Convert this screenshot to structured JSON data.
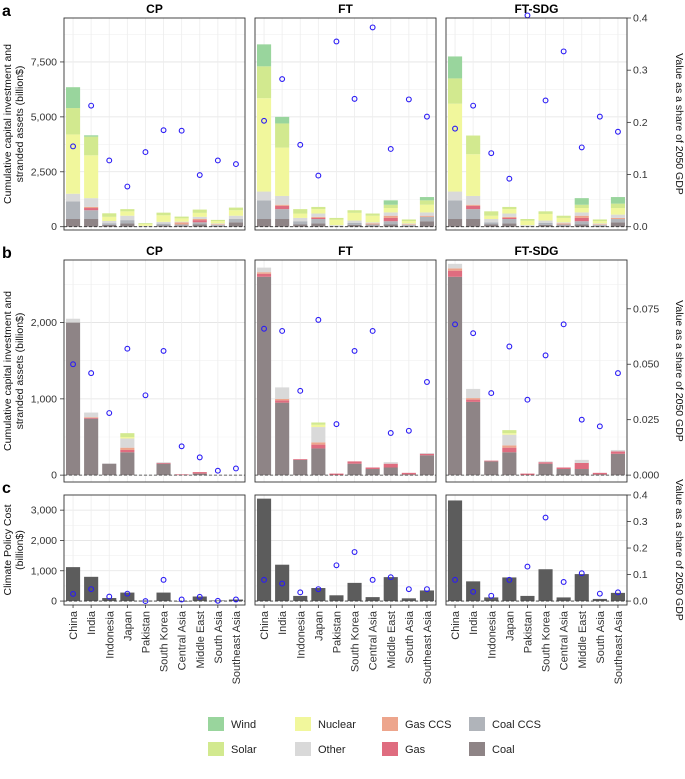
{
  "colors": {
    "Wind": "#99d59d",
    "Solar": "#d2e98f",
    "Nuclear": "#f1f79c",
    "Other": "#d9d9d9",
    "Gas CCS": "#eda58c",
    "Gas": "#df6c7f",
    "Coal CCS": "#b0b4ba",
    "Coal": "#8e8486",
    "PolicyCost": "#5c5c5c",
    "Point": "#2b1cf5"
  },
  "chart_data": [
    {
      "panel_label": "a",
      "type": "bar",
      "stacked": true,
      "facets": [
        "CP",
        "FT",
        "FT-SDG"
      ],
      "ylabel_lines": [
        "Cumulative capital investment and",
        "stranded assets (billion$)"
      ],
      "y2label": "Value as a share of 2050 GDP",
      "ylim": [
        -150,
        9500
      ],
      "y2lim": [
        -0.0063,
        0.4
      ],
      "yticks": [
        0,
        2500,
        5000,
        7500
      ],
      "ytick_labels": [
        "0",
        "2,500",
        "5,000",
        "7,500"
      ],
      "y2ticks": [
        0,
        0.1,
        0.2,
        0.3,
        0.4
      ],
      "y2tick_labels": [
        "0.0",
        "0.1",
        "0.2",
        "0.3",
        "0.4"
      ],
      "categories": [
        "China",
        "India",
        "Indonesia",
        "Japan",
        "Pakistan",
        "South Korea",
        "Central Asia",
        "Middle East",
        "South Asia",
        "Southeast Asia"
      ],
      "stack_order": [
        "Coal",
        "Coal CCS",
        "Gas",
        "Gas CCS",
        "Other",
        "Nuclear",
        "Solar",
        "Wind"
      ],
      "data": {
        "CP": {
          "Coal": [
            350,
            350,
            80,
            150,
            10,
            60,
            50,
            100,
            40,
            200
          ],
          "Coal CCS": [
            800,
            400,
            80,
            150,
            10,
            80,
            50,
            100,
            40,
            150
          ],
          "Gas": [
            0,
            100,
            0,
            0,
            0,
            0,
            0,
            100,
            0,
            0
          ],
          "Gas CCS": [
            0,
            50,
            0,
            0,
            0,
            0,
            100,
            50,
            30,
            0
          ],
          "Other": [
            350,
            400,
            100,
            200,
            20,
            80,
            30,
            100,
            40,
            150
          ],
          "Nuclear": [
            2700,
            1950,
            190,
            200,
            80,
            300,
            150,
            180,
            100,
            250
          ],
          "Solar": [
            1200,
            850,
            160,
            100,
            40,
            120,
            80,
            150,
            60,
            120
          ],
          "Wind": [
            950,
            60,
            0,
            0,
            0,
            0,
            0,
            0,
            0,
            0
          ],
          "share": [
            0.154,
            0.232,
            0.127,
            0.077,
            0.143,
            0.185,
            0.184,
            0.099,
            0.127,
            0.12
          ]
        },
        "FT": {
          "Coal": [
            350,
            350,
            100,
            150,
            20,
            80,
            50,
            100,
            40,
            250
          ],
          "Coal CCS": [
            850,
            450,
            150,
            200,
            20,
            100,
            50,
            150,
            40,
            200
          ],
          "Gas": [
            0,
            150,
            0,
            50,
            0,
            0,
            0,
            150,
            0,
            0
          ],
          "Gas CCS": [
            0,
            50,
            0,
            50,
            0,
            0,
            50,
            100,
            30,
            50
          ],
          "Other": [
            400,
            400,
            150,
            150,
            30,
            100,
            50,
            150,
            40,
            150
          ],
          "Nuclear": [
            4250,
            2200,
            200,
            200,
            250,
            350,
            300,
            200,
            100,
            350
          ],
          "Solar": [
            1450,
            1100,
            200,
            100,
            80,
            120,
            100,
            150,
            80,
            200
          ],
          "Wind": [
            1000,
            300,
            0,
            0,
            0,
            0,
            0,
            200,
            0,
            150
          ],
          "share": [
            0.203,
            0.283,
            0.157,
            0.098,
            0.355,
            0.245,
            0.382,
            0.149,
            0.244,
            0.211
          ]
        },
        "FT-SDG": {
          "Coal": [
            350,
            350,
            100,
            150,
            20,
            80,
            50,
            100,
            40,
            200
          ],
          "Coal CCS": [
            850,
            450,
            100,
            200,
            20,
            100,
            50,
            150,
            40,
            150
          ],
          "Gas": [
            0,
            150,
            0,
            50,
            0,
            0,
            0,
            150,
            0,
            0
          ],
          "Gas CCS": [
            0,
            50,
            0,
            50,
            0,
            0,
            50,
            100,
            30,
            50
          ],
          "Other": [
            400,
            400,
            150,
            150,
            30,
            100,
            50,
            150,
            40,
            150
          ],
          "Nuclear": [
            4000,
            1900,
            150,
            200,
            200,
            300,
            200,
            200,
            100,
            300
          ],
          "Solar": [
            1150,
            850,
            200,
            100,
            80,
            120,
            100,
            150,
            80,
            200
          ],
          "Wind": [
            1000,
            0,
            0,
            0,
            0,
            0,
            0,
            300,
            0,
            300
          ],
          "share": [
            0.188,
            0.232,
            0.141,
            0.092,
            0.405,
            0.242,
            0.336,
            0.152,
            0.211,
            0.182
          ]
        }
      }
    },
    {
      "panel_label": "b",
      "type": "bar",
      "stacked": true,
      "facets": [
        "CP",
        "FT",
        "FT-SDG"
      ],
      "ylabel_lines": [
        "Cumulative capital investment and",
        "stranded assets (billion$)"
      ],
      "y2label": "Value as a share of 2050 GDP",
      "ylim": [
        -90,
        2820
      ],
      "y2lim": [
        -0.0031,
        0.097
      ],
      "yticks": [
        0,
        1000,
        2000
      ],
      "ytick_labels": [
        "0",
        "1,000",
        "2,000"
      ],
      "y2ticks": [
        0,
        0.025,
        0.05,
        0.075
      ],
      "y2tick_labels": [
        "0.000",
        "0.025",
        "0.050",
        "0.075"
      ],
      "categories": [
        "China",
        "India",
        "Indonesia",
        "Japan",
        "Pakistan",
        "South Korea",
        "Central Asia",
        "Middle East",
        "South Asia",
        "Southeast Asia"
      ],
      "stack_order": [
        "Coal",
        "Coal CCS",
        "Gas",
        "Gas CCS",
        "Other",
        "Nuclear",
        "Solar",
        "Wind"
      ],
      "data": {
        "CP": {
          "Coal": [
            2000,
            740,
            150,
            300,
            0,
            150,
            0,
            20,
            0,
            0
          ],
          "Coal CCS": [
            0,
            0,
            0,
            0,
            0,
            0,
            0,
            0,
            0,
            0
          ],
          "Gas": [
            0,
            10,
            0,
            30,
            0,
            10,
            10,
            20,
            0,
            0
          ],
          "Gas CCS": [
            0,
            10,
            0,
            30,
            0,
            0,
            0,
            0,
            0,
            0
          ],
          "Other": [
            50,
            60,
            0,
            120,
            0,
            10,
            0,
            0,
            0,
            0
          ],
          "Nuclear": [
            0,
            0,
            0,
            20,
            0,
            0,
            0,
            0,
            0,
            0
          ],
          "Solar": [
            0,
            0,
            0,
            50,
            0,
            0,
            0,
            0,
            0,
            0
          ],
          "Wind": [
            0,
            0,
            0,
            0,
            0,
            0,
            0,
            0,
            0,
            0
          ],
          "share": [
            0.05,
            0.046,
            0.028,
            0.057,
            0.036,
            0.056,
            0.013,
            0.008,
            0.002,
            0.003
          ]
        },
        "FT": {
          "Coal": [
            2600,
            950,
            200,
            350,
            0,
            150,
            80,
            100,
            10,
            260
          ],
          "Coal CCS": [
            0,
            0,
            0,
            0,
            0,
            0,
            0,
            0,
            0,
            0
          ],
          "Gas": [
            40,
            30,
            10,
            50,
            20,
            30,
            20,
            50,
            20,
            20
          ],
          "Gas CCS": [
            20,
            20,
            0,
            30,
            0,
            0,
            0,
            0,
            0,
            0
          ],
          "Other": [
            60,
            150,
            0,
            200,
            0,
            0,
            0,
            20,
            0,
            10
          ],
          "Nuclear": [
            0,
            0,
            0,
            30,
            0,
            0,
            0,
            0,
            0,
            0
          ],
          "Solar": [
            0,
            0,
            0,
            30,
            0,
            0,
            0,
            0,
            0,
            0
          ],
          "Wind": [
            0,
            0,
            0,
            0,
            0,
            0,
            0,
            0,
            0,
            0
          ],
          "share": [
            0.066,
            0.065,
            0.038,
            0.07,
            0.023,
            0.056,
            0.065,
            0.019,
            0.02,
            0.042
          ]
        },
        "FT-SDG": {
          "Coal": [
            2600,
            960,
            180,
            300,
            0,
            150,
            80,
            80,
            10,
            280
          ],
          "Coal CCS": [
            0,
            0,
            0,
            0,
            0,
            0,
            0,
            0,
            0,
            0
          ],
          "Gas": [
            80,
            30,
            10,
            60,
            20,
            20,
            20,
            80,
            20,
            30
          ],
          "Gas CCS": [
            30,
            20,
            0,
            30,
            0,
            0,
            0,
            0,
            0,
            0
          ],
          "Other": [
            60,
            120,
            0,
            140,
            0,
            10,
            0,
            40,
            0,
            20
          ],
          "Nuclear": [
            0,
            0,
            0,
            20,
            0,
            0,
            0,
            0,
            0,
            0
          ],
          "Solar": [
            0,
            0,
            0,
            40,
            0,
            0,
            0,
            0,
            0,
            0
          ],
          "Wind": [
            0,
            0,
            0,
            0,
            0,
            0,
            0,
            0,
            0,
            0
          ],
          "share": [
            0.068,
            0.064,
            0.037,
            0.058,
            0.034,
            0.054,
            0.068,
            0.025,
            0.022,
            0.046
          ]
        }
      }
    },
    {
      "panel_label": "c",
      "type": "bar",
      "stacked": false,
      "facets": [
        "CP",
        "FT",
        "FT-SDG"
      ],
      "ylabel_lines": [
        "Climate Policy Cost",
        "(billion$)"
      ],
      "y2label": "Value as a share of 2050 GDP",
      "ylim": [
        -130,
        3500
      ],
      "y2lim": [
        -0.0148,
        0.4
      ],
      "yticks": [
        0,
        1000,
        2000,
        3000
      ],
      "ytick_labels": [
        "0",
        "1,000",
        "2,000",
        "3,000"
      ],
      "y2ticks": [
        0,
        0.1,
        0.2,
        0.3,
        0.4
      ],
      "y2tick_labels": [
        "0.0",
        "0.1",
        "0.2",
        "0.3",
        "0.4"
      ],
      "categories": [
        "China",
        "India",
        "Indonesia",
        "Japan",
        "Pakistan",
        "South Korea",
        "Central Asia",
        "Middle East",
        "South Asia",
        "Southeast Asia"
      ],
      "data": {
        "CP": {
          "cost": [
            1120,
            800,
            100,
            280,
            10,
            280,
            0,
            150,
            20,
            50
          ],
          "share": [
            0.027,
            0.045,
            0.017,
            0.028,
            0.0,
            0.08,
            0.006,
            0.016,
            0.001,
            0.006
          ]
        },
        "FT": {
          "cost": [
            3380,
            1200,
            170,
            430,
            190,
            600,
            130,
            790,
            90,
            350
          ],
          "share": [
            0.08,
            0.066,
            0.033,
            0.045,
            0.135,
            0.185,
            0.08,
            0.09,
            0.045,
            0.045
          ]
        },
        "FT-SDG": {
          "cost": [
            3320,
            650,
            120,
            780,
            170,
            1050,
            120,
            890,
            70,
            270
          ],
          "share": [
            0.08,
            0.035,
            0.02,
            0.08,
            0.13,
            0.315,
            0.072,
            0.105,
            0.028,
            0.033
          ]
        }
      }
    }
  ],
  "legend": {
    "items": [
      {
        "key": "Wind",
        "label": "Wind"
      },
      {
        "key": "Nuclear",
        "label": "Nuclear"
      },
      {
        "key": "Gas CCS",
        "label": "Gas CCS"
      },
      {
        "key": "Coal CCS",
        "label": "Coal CCS"
      },
      {
        "key": "Solar",
        "label": "Solar"
      },
      {
        "key": "Other",
        "label": "Other"
      },
      {
        "key": "Gas",
        "label": "Gas"
      },
      {
        "key": "Coal",
        "label": "Coal"
      }
    ]
  }
}
